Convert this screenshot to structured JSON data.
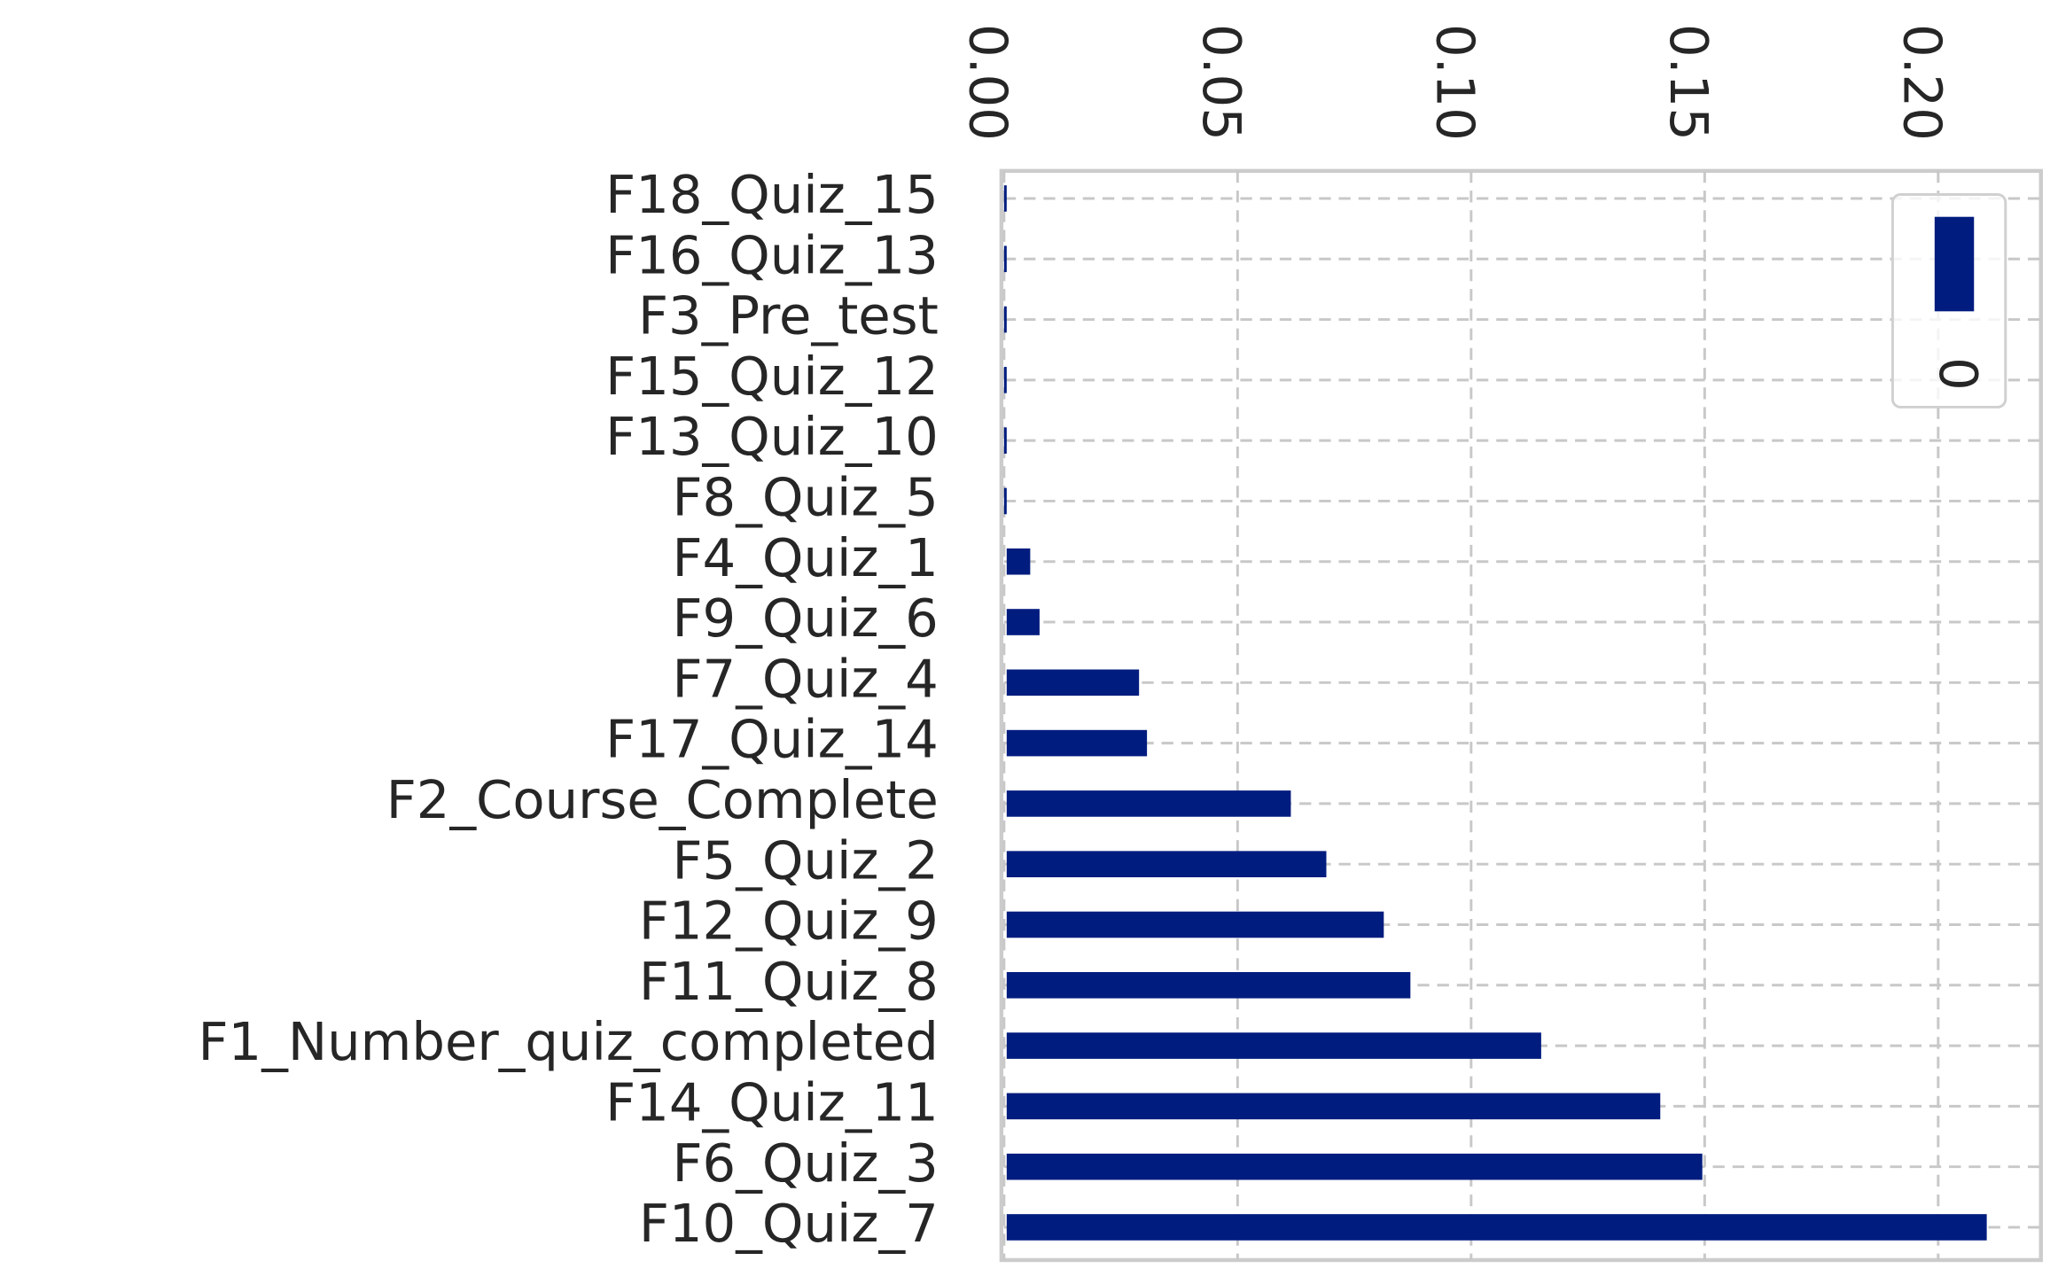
{
  "chart_data": {
    "type": "barh",
    "categories": [
      "F18_Quiz_15",
      "F16_Quiz_13",
      "F3_Pre_test",
      "F15_Quiz_12",
      "F13_Quiz_10",
      "F8_Quiz_5",
      "F4_Quiz_1",
      "F9_Quiz_6",
      "F7_Quiz_4",
      "F17_Quiz_14",
      "F2_Course_Complete",
      "F5_Quiz_2",
      "F12_Quiz_9",
      "F11_Quiz_8",
      "F1_Number_quiz_completed",
      "F14_Quiz_11",
      "F6_Quiz_3",
      "F10_Quiz_7"
    ],
    "series": [
      {
        "name": "0",
        "color": "#001c7f",
        "values": [
          0,
          0,
          0,
          0,
          0,
          0,
          0.0056,
          0.0076,
          0.0289,
          0.0306,
          0.0614,
          0.069,
          0.0813,
          0.087,
          0.115,
          0.1405,
          0.1495,
          0.2104
        ]
      }
    ],
    "xlim": [
      0,
      0.222
    ],
    "xticks": [
      {
        "value": 0,
        "label": "0.00"
      },
      {
        "value": 0.05,
        "label": "0.05"
      },
      {
        "value": 0.1,
        "label": "0.10"
      },
      {
        "value": 0.15,
        "label": "0.15"
      },
      {
        "value": 0.2,
        "label": "0.20"
      }
    ],
    "grid": true,
    "legend": "upper right"
  }
}
